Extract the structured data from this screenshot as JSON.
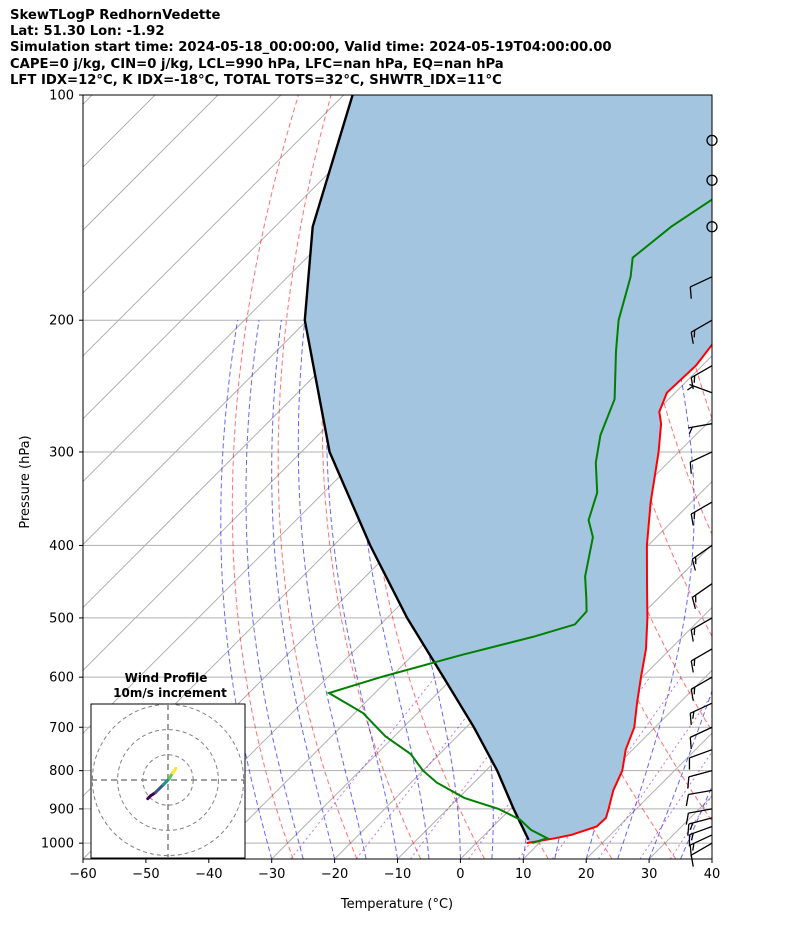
{
  "title_lines": [
    "SkewTLogP RedhornVedette",
    "Lat: 51.30   Lon: -1.92",
    "Simulation start time: 2024-05-18_00:00:00, Valid time: 2024-05-19T04:00:00.00",
    "CAPE=0 j/kg, CIN=0 j/kg, LCL=990 hPa, LFC=nan hPa, EQ=nan hPa",
    "LFT IDX=12°C, K IDX=-18°C, TOTAL TOTS=32°C, SHWTR_IDX=11°C"
  ],
  "chart_data": {
    "type": "skewt",
    "xlabel": "Temperature (°C)",
    "ylabel": "Pressure (hPa)",
    "xlim": [
      -60,
      40
    ],
    "ylim_hpa": [
      1050,
      100
    ],
    "x_ticks": [
      -60,
      -50,
      -40,
      -30,
      -20,
      -10,
      0,
      10,
      20,
      30,
      40
    ],
    "x_tick_labels": [
      "−60",
      "−50",
      "−40",
      "−30",
      "−20",
      "−10",
      "0",
      "10",
      "20",
      "30",
      "40"
    ],
    "y_ticks": [
      1000,
      900,
      800,
      700,
      600,
      500,
      400,
      300,
      200,
      100
    ],
    "y_tick_labels": [
      "1000",
      "900",
      "800",
      "700",
      "600",
      "500",
      "400",
      "300",
      "200",
      "100"
    ],
    "temperature_profile": {
      "color": "#ff0000",
      "pressure": [
        1000,
        985,
        975,
        950,
        925,
        900,
        850,
        800,
        750,
        700,
        650,
        600,
        550,
        500,
        450,
        400,
        350,
        300,
        275,
        265,
        250,
        230,
        215,
        200,
        185,
        170,
        160,
        150,
        140,
        130,
        120,
        110,
        100
      ],
      "temperature": [
        8,
        11.8,
        13.8,
        16.5,
        16.6,
        15.6,
        13.4,
        11.7,
        8.9,
        6.7,
        3.3,
        -0.2,
        -3.9,
        -8.6,
        -14.1,
        -20.2,
        -26.5,
        -33.2,
        -37.3,
        -39.5,
        -41.3,
        -41.0,
        -41.8,
        -44.3,
        -45.8,
        -46.7,
        -48.8,
        -51.1,
        -52.5,
        -52.3,
        -53.5,
        -56.9,
        -59.3
      ]
    },
    "dewpoint_profile": {
      "color": "#008000",
      "pressure": [
        1000,
        985,
        960,
        930,
        900,
        870,
        830,
        800,
        760,
        720,
        670,
        630,
        600,
        560,
        530,
        510,
        490,
        470,
        440,
        390,
        370,
        340,
        310,
        285,
        255,
        220,
        200,
        175,
        165,
        150,
        130,
        110,
        100
      ],
      "temperature": [
        8.9,
        10.5,
        6.6,
        3.2,
        -1.9,
        -9.1,
        -15.9,
        -20.0,
        -24.6,
        -31.4,
        -38.7,
        -47.3,
        -41.6,
        -32.2,
        -23.8,
        -19.1,
        -19.3,
        -21.5,
        -25.1,
        -30.1,
        -33.5,
        -36.5,
        -41.5,
        -45.1,
        -48.6,
        -56.0,
        -60.5,
        -65.5,
        -68.2,
        -67.0,
        -63.3,
        -60.5,
        -58.5
      ]
    },
    "parcel_profile": {
      "color": "#000000",
      "pressure": [
        990,
        900,
        800,
        700,
        600,
        500,
        400,
        300,
        200,
        150,
        100
      ],
      "temperature": [
        7.8,
        0.5,
        -8.2,
        -18.8,
        -31.6,
        -46.8,
        -64.2,
        -85.5,
        -110.4,
        -124.0,
        -138.6
      ]
    },
    "shaded_area_color": "#a3c5df",
    "wind_barbs": [
      {
        "pressure": 1000,
        "speed_kt": 10,
        "direction_deg": 240
      },
      {
        "pressure": 975,
        "speed_kt": 15,
        "direction_deg": 245
      },
      {
        "pressure": 950,
        "speed_kt": 15,
        "direction_deg": 250
      },
      {
        "pressure": 925,
        "speed_kt": 15,
        "direction_deg": 255
      },
      {
        "pressure": 900,
        "speed_kt": 10,
        "direction_deg": 260
      },
      {
        "pressure": 850,
        "speed_kt": 10,
        "direction_deg": 260
      },
      {
        "pressure": 800,
        "speed_kt": 10,
        "direction_deg": 255
      },
      {
        "pressure": 750,
        "speed_kt": 10,
        "direction_deg": 250
      },
      {
        "pressure": 700,
        "speed_kt": 10,
        "direction_deg": 245
      },
      {
        "pressure": 650,
        "speed_kt": 15,
        "direction_deg": 245
      },
      {
        "pressure": 600,
        "speed_kt": 15,
        "direction_deg": 240
      },
      {
        "pressure": 550,
        "speed_kt": 15,
        "direction_deg": 240
      },
      {
        "pressure": 500,
        "speed_kt": 15,
        "direction_deg": 240
      },
      {
        "pressure": 450,
        "speed_kt": 15,
        "direction_deg": 235
      },
      {
        "pressure": 400,
        "speed_kt": 15,
        "direction_deg": 235
      },
      {
        "pressure": 350,
        "speed_kt": 15,
        "direction_deg": 240
      },
      {
        "pressure": 300,
        "speed_kt": 10,
        "direction_deg": 245
      },
      {
        "pressure": 275,
        "speed_kt": 5,
        "direction_deg": 260
      },
      {
        "pressure": 250,
        "speed_kt": 5,
        "direction_deg": 290
      },
      {
        "pressure": 230,
        "speed_kt": 15,
        "direction_deg": 240
      },
      {
        "pressure": 200,
        "speed_kt": 15,
        "direction_deg": 240
      },
      {
        "pressure": 175,
        "speed_kt": 10,
        "direction_deg": 245
      },
      {
        "pressure": 150,
        "speed_kt": 0,
        "direction_deg": 0
      },
      {
        "pressure": 130,
        "speed_kt": 0,
        "direction_deg": 0
      },
      {
        "pressure": 115,
        "speed_kt": 0,
        "direction_deg": 0
      }
    ],
    "hodograph": {
      "title": "Wind Profile",
      "subtitle": "10m/s increment",
      "ring_increment_ms": 10,
      "ring_count": 3,
      "u": [
        -2.6,
        -2.2,
        -1.6,
        -1.0,
        -0.6,
        -0.2,
        0.2,
        0.4,
        0.6,
        0.9,
        1.0
      ],
      "v": [
        -2.4,
        -2.0,
        -1.6,
        -1.0,
        -0.6,
        -0.2,
        0.2,
        0.6,
        0.9,
        1.3,
        1.5
      ],
      "colormap": [
        "#440154",
        "#3b528b",
        "#21918c",
        "#5ec962",
        "#fde725"
      ]
    }
  }
}
